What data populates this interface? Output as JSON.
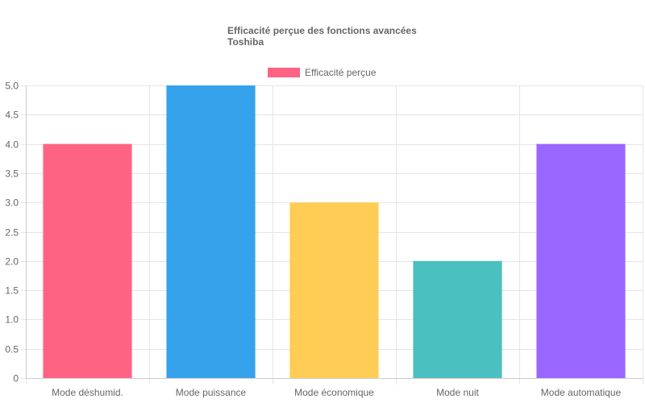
{
  "chart_data": {
    "type": "bar",
    "title": [
      "Efficacité perçue des fonctions avancées",
      "Toshiba"
    ],
    "categories": [
      "Mode déshumid.",
      "Mode puissance",
      "Mode économique",
      "Mode nuit",
      "Mode automatique"
    ],
    "series": [
      {
        "name": "Efficacité perçue",
        "values": [
          4,
          5,
          3,
          2,
          4
        ],
        "colors": [
          "#ff6384",
          "#36a2eb",
          "#ffcd56",
          "#4bc0c0",
          "#9966ff"
        ]
      }
    ],
    "legend_color": "#ff6384",
    "xlabel": "",
    "ylabel": "",
    "ylim": [
      0,
      5
    ],
    "yticks": [
      "0",
      "0.5",
      "1.0",
      "1.5",
      "2.0",
      "2.5",
      "3.0",
      "3.5",
      "4.0",
      "4.5",
      "5.0"
    ],
    "grid": true,
    "legend_position": "top"
  }
}
